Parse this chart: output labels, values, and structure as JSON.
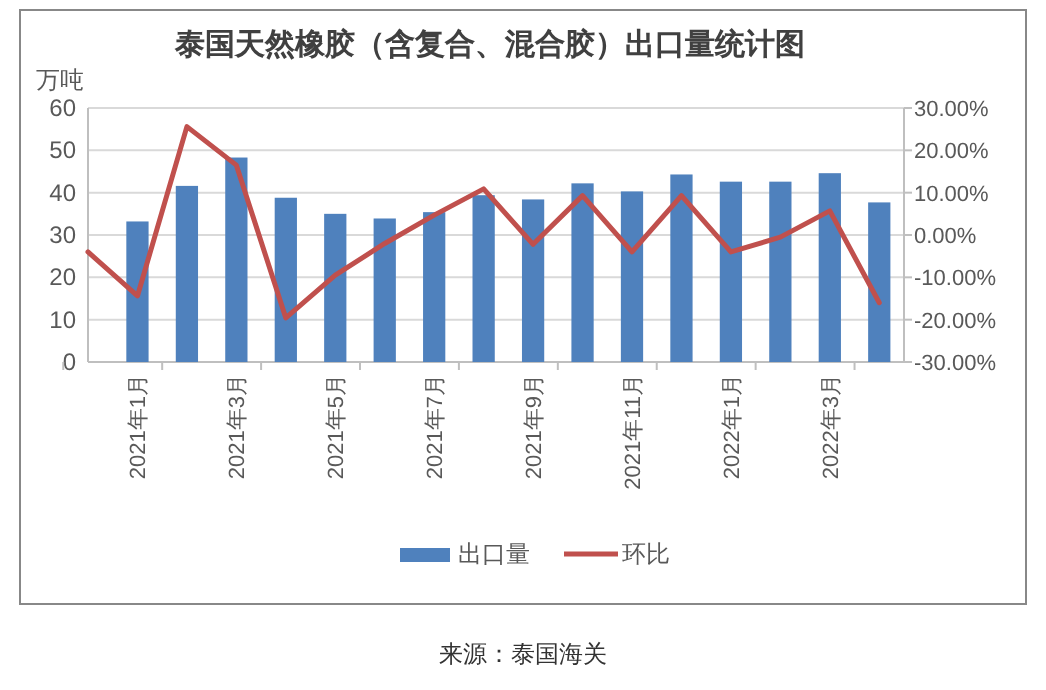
{
  "chart_data": {
    "type": "bar",
    "title": "泰国天然橡胶（含复合、混合胶）出口量统计图",
    "ylabel": "万吨",
    "categories": [
      null,
      "2021年1月",
      null,
      "2021年3月",
      null,
      "2021年5月",
      null,
      "2021年7月",
      null,
      "2021年9月",
      null,
      "2021年11月",
      null,
      "2022年1月",
      null,
      "2022年3月",
      null
    ],
    "series": [
      {
        "name": "出口量",
        "color": "#4f81bd",
        "values": [
          null,
          33.2,
          41.6,
          48.3,
          38.8,
          35,
          33.9,
          35.4,
          39.4,
          38.4,
          42.2,
          40.3,
          44.3,
          42.6,
          42.6,
          44.6,
          37.7
        ]
      },
      {
        "name": "环比",
        "type": "line",
        "axis": "y2",
        "color": "#c0504d",
        "values": [
          -4,
          -14.4,
          25.6,
          16.5,
          -19.6,
          -9.5,
          -2,
          4.7,
          10.9,
          -2.2,
          9.3,
          -4,
          9.3,
          -4,
          -0.5,
          5.7,
          -16
        ]
      }
    ],
    "ylim": [
      0,
      60
    ],
    "yticks": [
      0,
      10,
      20,
      30,
      40,
      50,
      60
    ],
    "y2lim": [
      -30,
      30
    ],
    "y2ticks": [
      {
        "value": -30,
        "label": "-30.00%"
      },
      {
        "value": -20,
        "label": "-20.00%"
      },
      {
        "value": -10,
        "label": "-10.00%"
      },
      {
        "value": 0,
        "label": "0.00%"
      },
      {
        "value": 10,
        "label": "10.00%"
      },
      {
        "value": 20,
        "label": "20.00%"
      },
      {
        "value": 30,
        "label": "30.00%"
      }
    ],
    "grid": "y",
    "legend": "bottom",
    "marker": "none",
    "line_style": "solid",
    "annotations": [
      "来源：泰国海关"
    ]
  }
}
